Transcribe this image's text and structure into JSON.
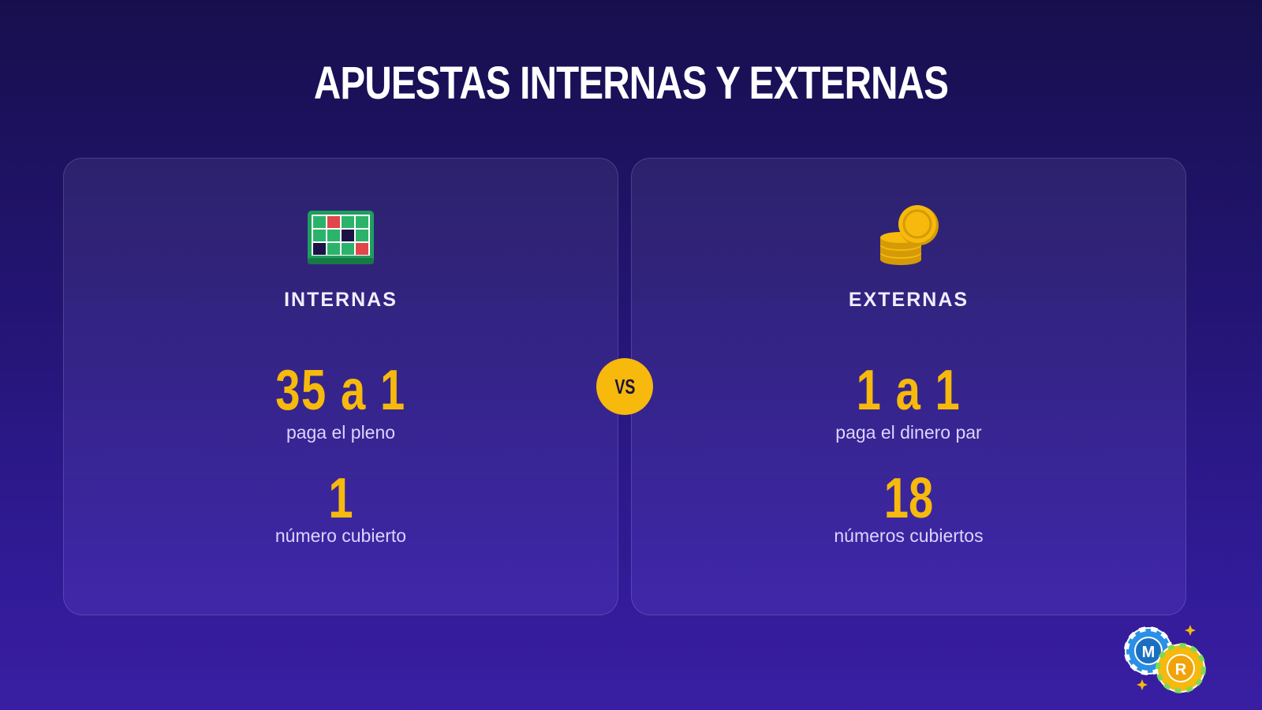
{
  "title": "APUESTAS INTERNAS Y EXTERNAS",
  "vs_label": "VS",
  "cards": [
    {
      "icon": "roulette-table-icon",
      "label": "INTERNAS",
      "stat1_value": "35 a 1",
      "stat1_caption": "paga el pleno",
      "stat2_value": "1",
      "stat2_caption": "número cubierto"
    },
    {
      "icon": "coin-stack-icon",
      "label": "EXTERNAS",
      "stat1_value": "1 a 1",
      "stat1_caption": "paga el dinero par",
      "stat2_value": "18",
      "stat2_caption": "números cubiertos"
    }
  ],
  "logo": {
    "icon": "casino-chips-logo",
    "letters": [
      "M",
      "R"
    ]
  },
  "colors": {
    "accent": "#f6b90c",
    "background_top": "#170f4d",
    "background_bottom": "#391ea3",
    "table_green": "#1f9e5e",
    "red": "#e0464a",
    "black": "#1b1346"
  }
}
